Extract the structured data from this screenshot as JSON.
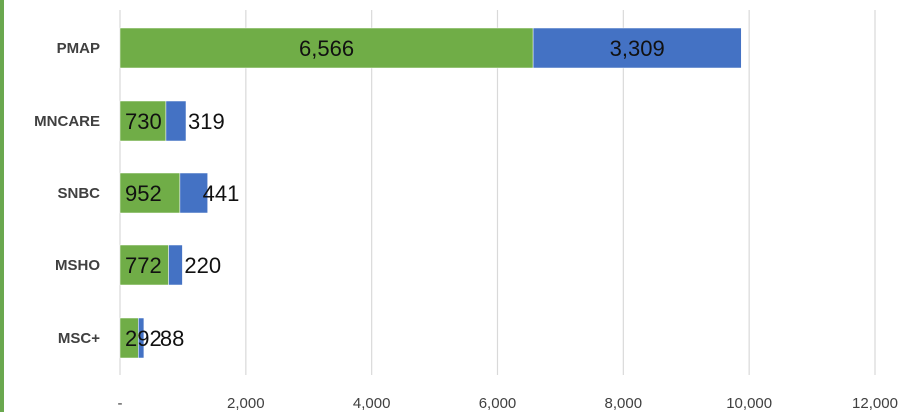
{
  "chart_data": {
    "type": "bar",
    "orientation": "horizontal",
    "stacked": true,
    "categories": [
      "PMAP",
      "MNCARE",
      "SNBC",
      "MSHO",
      "MSC+"
    ],
    "series": [
      {
        "values": [
          6566,
          730,
          952,
          772,
          292
        ],
        "color": "#70ad47"
      },
      {
        "values": [
          3309,
          319,
          441,
          220,
          88
        ],
        "color": "#4472c4"
      }
    ],
    "data_labels": [
      [
        "6,566",
        "730",
        "952",
        "772",
        "292"
      ],
      [
        "3,309",
        "319",
        "441",
        "220",
        "88"
      ]
    ],
    "xlim": [
      0,
      12000
    ],
    "x_ticks": [
      0,
      2000,
      4000,
      6000,
      8000,
      10000,
      12000
    ],
    "x_tick_labels": [
      "-",
      "2,000",
      "4,000",
      "6,000",
      "8,000",
      "10,000",
      "12,000"
    ],
    "grid": "vertical",
    "legend": "none",
    "title": "",
    "xlabel": "",
    "ylabel": ""
  }
}
